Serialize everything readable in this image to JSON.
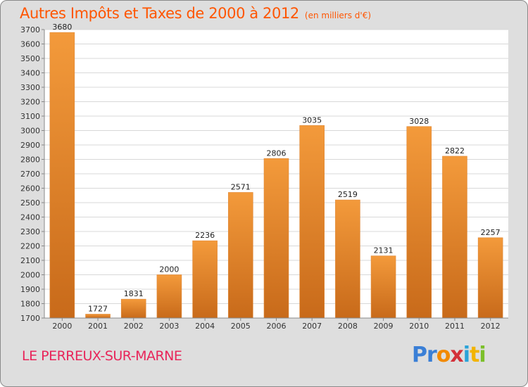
{
  "title": "Autres Impôts et Taxes de 2000 à 2012",
  "unit_note": "(en milliers d'€)",
  "place": "LE PERREUX-SUR-MARNE",
  "logo": {
    "p": "Pr",
    "o": "o",
    "x": "x",
    "i": "i",
    "t": "t",
    "i2": "i"
  },
  "colors": {
    "bar": "#f39a3b",
    "bar_dark": "#c86a1a",
    "title": "#ff5500",
    "place": "#e8255a",
    "background": "#dedede",
    "plot": "#ffffff"
  },
  "chart_data": {
    "type": "bar",
    "categories": [
      "2000",
      "2001",
      "2002",
      "2003",
      "2004",
      "2005",
      "2006",
      "2007",
      "2008",
      "2009",
      "2010",
      "2011",
      "2012"
    ],
    "values": [
      3680,
      1727,
      1831,
      2000,
      2236,
      2571,
      2806,
      3035,
      2519,
      2131,
      3028,
      2822,
      2257
    ],
    "ylim": [
      1700,
      3700
    ],
    "yticks": [
      1700,
      1800,
      1900,
      2000,
      2100,
      2200,
      2300,
      2400,
      2500,
      2600,
      2700,
      2800,
      2900,
      3000,
      3100,
      3200,
      3300,
      3400,
      3500,
      3600,
      3700
    ],
    "grid": true,
    "data_labels": true
  }
}
